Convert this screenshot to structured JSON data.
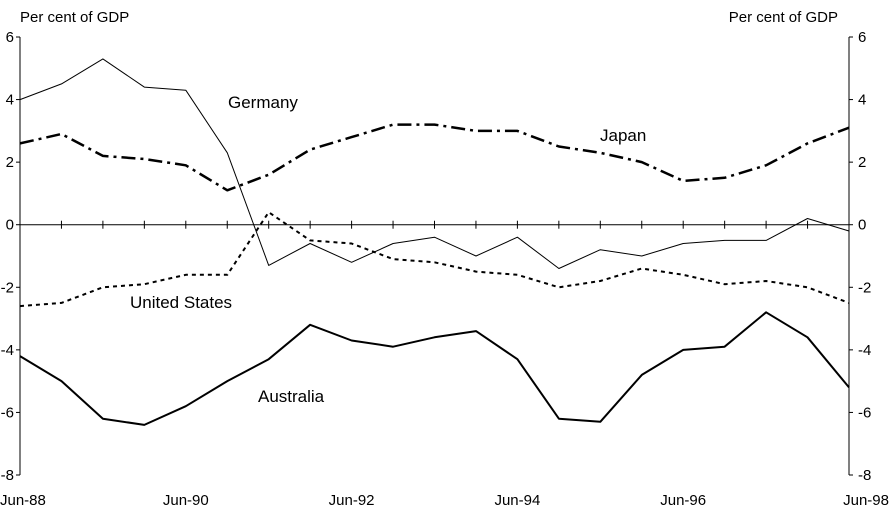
{
  "chart_data": {
    "type": "line",
    "title": "",
    "ylabel_left": "Per cent of GDP",
    "ylabel_right": "Per cent of GDP",
    "ylim": [
      -8,
      6
    ],
    "yticks": [
      6,
      4,
      2,
      0,
      -2,
      -4,
      -6,
      -8
    ],
    "ytick_labels": [
      "6",
      "4",
      "2",
      "0",
      "-2",
      "-4",
      "-6",
      "-8"
    ],
    "xlim": [
      0,
      20
    ],
    "xtick_positions": [
      0,
      4,
      8,
      12,
      16,
      20
    ],
    "xtick_labels": [
      "Jun-88",
      "Jun-90",
      "Jun-92",
      "Jun-94",
      "Jun-96",
      "Jun-98"
    ],
    "x_periods": [
      "Jun-88",
      "Dec-88",
      "Jun-89",
      "Dec-89",
      "Jun-90",
      "Dec-90",
      "Jun-91",
      "Dec-91",
      "Jun-92",
      "Dec-92",
      "Jun-93",
      "Dec-93",
      "Jun-94",
      "Dec-94",
      "Jun-95",
      "Dec-95",
      "Jun-96",
      "Dec-96",
      "Jun-97",
      "Dec-97",
      "Jun-98"
    ],
    "grid": false,
    "zero_line": true,
    "legend": "none",
    "series": [
      {
        "name": "Germany",
        "style": "thin-solid",
        "x": [
          0,
          1,
          2,
          3,
          4,
          5,
          6,
          7,
          8,
          9,
          10,
          11,
          12,
          13,
          14,
          15,
          16,
          17,
          18,
          19,
          20
        ],
        "values": [
          4.0,
          4.5,
          5.3,
          4.4,
          4.3,
          2.3,
          -1.3,
          -0.6,
          -1.2,
          -0.6,
          -0.4,
          -1.0,
          -0.4,
          -1.4,
          -0.8,
          -1.0,
          -0.6,
          -0.5,
          -0.5,
          0.2,
          -0.2
        ]
      },
      {
        "name": "Japan",
        "style": "thick-dash-dot",
        "x": [
          0,
          1,
          2,
          3,
          4,
          5,
          6,
          7,
          8,
          9,
          10,
          11,
          12,
          13,
          14,
          15,
          16,
          17,
          18,
          19,
          20
        ],
        "values": [
          2.6,
          2.9,
          2.2,
          2.1,
          1.9,
          1.1,
          1.6,
          2.4,
          2.8,
          3.2,
          3.2,
          3.0,
          3.0,
          2.5,
          2.3,
          2.0,
          1.4,
          1.5,
          1.9,
          2.6,
          3.1
        ]
      },
      {
        "name": "United States",
        "style": "dotted",
        "x": [
          0,
          1,
          2,
          3,
          4,
          5,
          6,
          7,
          8,
          9,
          10,
          11,
          12,
          13,
          14,
          15,
          16,
          17,
          18,
          19,
          20
        ],
        "values": [
          -2.6,
          -2.5,
          -2.0,
          -1.9,
          -1.6,
          -1.6,
          0.4,
          -0.5,
          -0.6,
          -1.1,
          -1.2,
          -1.5,
          -1.6,
          -2.0,
          -1.8,
          -1.4,
          -1.6,
          -1.9,
          -1.8,
          -2.0,
          -2.5
        ]
      },
      {
        "name": "Australia",
        "style": "thick-solid",
        "x": [
          0,
          1,
          2,
          3,
          4,
          5,
          6,
          7,
          8,
          9,
          10,
          11,
          12,
          13,
          14,
          15,
          16,
          17,
          18,
          19,
          20
        ],
        "values": [
          -4.2,
          -5.0,
          -6.2,
          -6.4,
          -5.8,
          -5.0,
          -4.3,
          -3.2,
          -3.7,
          -3.9,
          -3.6,
          -3.4,
          -4.3,
          -6.2,
          -6.3,
          -4.8,
          -4.0,
          -3.9,
          -2.8,
          -3.6,
          -5.2
        ]
      }
    ],
    "series_labels": [
      {
        "text": "Germany"
      },
      {
        "text": "Japan"
      },
      {
        "text": "United States"
      },
      {
        "text": "Australia"
      }
    ]
  }
}
